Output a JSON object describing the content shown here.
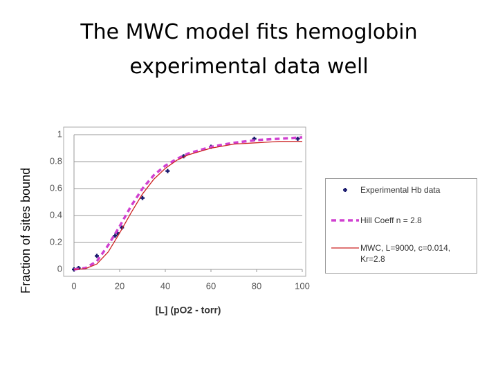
{
  "chart_data": {
    "type": "line",
    "title": "The MWC model fits hemoglobin experimental data well",
    "xlabel": "[L] (pO2 - torr)",
    "ylabel": "Fraction of sites bound",
    "xlim": [
      0,
      100
    ],
    "ylim": [
      0,
      1
    ],
    "xticks": [
      0,
      20,
      40,
      60,
      80,
      100
    ],
    "yticks": [
      0,
      0.2,
      0.4,
      0.6,
      0.8,
      1
    ],
    "grid": true,
    "series": [
      {
        "name": "Experimental Hb data",
        "color": "#1a1a6e",
        "style": "markers",
        "x": [
          0,
          2,
          10,
          18,
          19,
          21,
          30,
          41,
          48,
          60,
          79,
          98
        ],
        "values": [
          0,
          0.01,
          0.1,
          0.25,
          0.27,
          0.31,
          0.53,
          0.73,
          0.84,
          0.91,
          0.97,
          0.97
        ]
      },
      {
        "name": "Hill Coeff  n = 2.8",
        "color": "#d040d0",
        "style": "dashed",
        "x": [
          0,
          5,
          10,
          15,
          20,
          25,
          30,
          35,
          40,
          45,
          50,
          60,
          70,
          80,
          90,
          100
        ],
        "values": [
          0,
          0.01,
          0.06,
          0.18,
          0.32,
          0.47,
          0.6,
          0.7,
          0.77,
          0.82,
          0.86,
          0.91,
          0.94,
          0.96,
          0.97,
          0.98
        ]
      },
      {
        "name": "MWC, L=9000, c=0.014, Kr=2.8",
        "color": "#cc2020",
        "style": "solid",
        "x": [
          0,
          5,
          10,
          15,
          20,
          25,
          30,
          35,
          40,
          45,
          50,
          60,
          70,
          80,
          90,
          100
        ],
        "values": [
          0,
          0.005,
          0.04,
          0.13,
          0.27,
          0.42,
          0.56,
          0.67,
          0.75,
          0.81,
          0.85,
          0.9,
          0.93,
          0.94,
          0.95,
          0.95
        ]
      }
    ]
  }
}
